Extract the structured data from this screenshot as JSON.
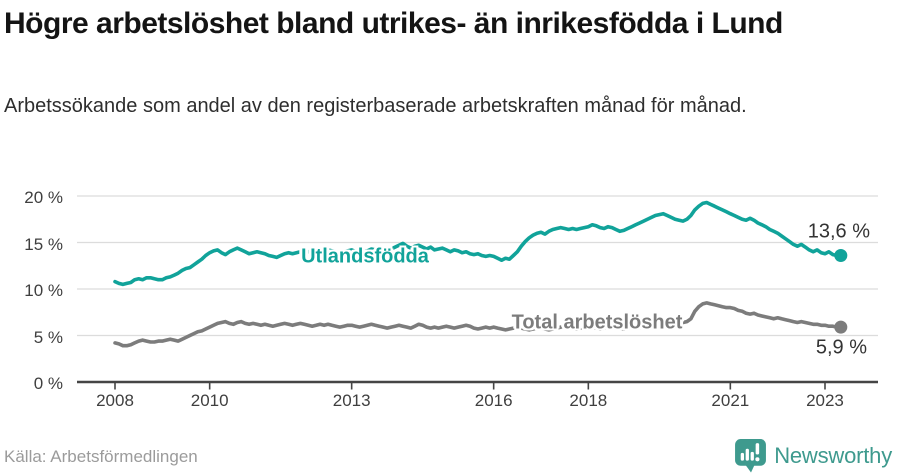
{
  "header": {
    "title": "Högre arbetslöshet bland utrikes- än inrikesfödda i Lund",
    "subtitle": "Arbetssökande som andel av den registerbaserade arbetskraften månad för månad."
  },
  "footer": {
    "source": "Källa: Arbetsförmedlingen",
    "brand": "Newsworthy"
  },
  "colors": {
    "foreign_born_line": "#11A39A",
    "total_line": "#7C7C7C",
    "grid": "#DCDCDC",
    "axis": "#454545",
    "brand_teal": "#3E9A8E"
  },
  "chart_data": {
    "type": "line",
    "title": "Högre arbetslöshet bland utrikes- än inrikesfödda i Lund",
    "xlabel": "",
    "ylabel": "Arbetssökande som andel av den registerbaserade arbetskraften",
    "x_unit": "month",
    "x_start_year": 2008,
    "points_per_year": 12,
    "x_ticks": [
      2008,
      2010,
      2013,
      2016,
      2018,
      2021,
      2023
    ],
    "y_ticks": [
      "0 %",
      "5 %",
      "10 %",
      "15 %",
      "20 %"
    ],
    "y_tick_values": [
      0,
      5,
      10,
      15,
      20
    ],
    "ylim": [
      0,
      21
    ],
    "grid": true,
    "legend_position": "inline-labels",
    "series": [
      {
        "name": "Utlandsfödda",
        "color": "#11A39A",
        "end_label": "13,6 %",
        "end_value": 13.6,
        "values": [
          10.8,
          10.6,
          10.5,
          10.6,
          10.7,
          11.0,
          11.1,
          11.0,
          11.2,
          11.2,
          11.1,
          11.0,
          11.0,
          11.2,
          11.3,
          11.5,
          11.7,
          12.0,
          12.2,
          12.3,
          12.6,
          12.9,
          13.2,
          13.6,
          13.9,
          14.1,
          14.2,
          13.9,
          13.7,
          14.0,
          14.2,
          14.4,
          14.2,
          14.0,
          13.8,
          13.9,
          14.0,
          13.9,
          13.8,
          13.6,
          13.5,
          13.4,
          13.6,
          13.8,
          13.9,
          13.8,
          13.9,
          14.0,
          14.1,
          14.0,
          13.9,
          13.8,
          13.9,
          14.0,
          14.2,
          14.1,
          14.0,
          13.9,
          14.0,
          14.1,
          14.2,
          14.0,
          13.9,
          14.0,
          14.1,
          14.3,
          14.2,
          14.1,
          14.0,
          14.1,
          14.3,
          14.5,
          14.7,
          14.9,
          14.6,
          14.4,
          14.6,
          14.7,
          14.5,
          14.3,
          14.5,
          14.2,
          14.3,
          14.4,
          14.2,
          14.0,
          14.2,
          14.1,
          13.9,
          14.0,
          13.8,
          13.7,
          13.8,
          13.6,
          13.5,
          13.6,
          13.5,
          13.3,
          13.1,
          13.3,
          13.2,
          13.6,
          14.0,
          14.6,
          15.1,
          15.5,
          15.8,
          16.0,
          16.1,
          15.9,
          16.2,
          16.4,
          16.5,
          16.6,
          16.5,
          16.4,
          16.5,
          16.4,
          16.5,
          16.6,
          16.7,
          16.9,
          16.8,
          16.6,
          16.5,
          16.7,
          16.6,
          16.4,
          16.2,
          16.3,
          16.5,
          16.7,
          16.9,
          17.1,
          17.3,
          17.5,
          17.7,
          17.9,
          18.0,
          18.1,
          17.9,
          17.7,
          17.5,
          17.4,
          17.3,
          17.5,
          17.9,
          18.5,
          18.9,
          19.2,
          19.3,
          19.1,
          18.9,
          18.7,
          18.5,
          18.3,
          18.1,
          17.9,
          17.7,
          17.5,
          17.4,
          17.6,
          17.4,
          17.1,
          16.9,
          16.7,
          16.4,
          16.2,
          16.0,
          15.7,
          15.4,
          15.1,
          14.8,
          14.6,
          14.8,
          14.5,
          14.2,
          14.0,
          14.2,
          13.9,
          13.8,
          14.0,
          13.7,
          13.6,
          13.6
        ]
      },
      {
        "name": "Total arbetslöshet",
        "color": "#7C7C7C",
        "end_label": "5,9 %",
        "end_value": 5.9,
        "values": [
          4.2,
          4.1,
          3.9,
          3.9,
          4.0,
          4.2,
          4.4,
          4.5,
          4.4,
          4.3,
          4.3,
          4.4,
          4.4,
          4.5,
          4.6,
          4.5,
          4.4,
          4.6,
          4.8,
          5.0,
          5.2,
          5.4,
          5.5,
          5.7,
          5.9,
          6.1,
          6.3,
          6.4,
          6.5,
          6.3,
          6.2,
          6.4,
          6.5,
          6.3,
          6.2,
          6.3,
          6.2,
          6.1,
          6.2,
          6.1,
          6.0,
          6.1,
          6.2,
          6.3,
          6.2,
          6.1,
          6.2,
          6.3,
          6.2,
          6.1,
          6.0,
          6.1,
          6.2,
          6.1,
          6.2,
          6.1,
          6.0,
          5.9,
          6.0,
          6.1,
          6.1,
          6.0,
          5.9,
          6.0,
          6.1,
          6.2,
          6.1,
          6.0,
          5.9,
          5.8,
          5.9,
          6.0,
          6.1,
          6.0,
          5.9,
          5.8,
          6.0,
          6.2,
          6.1,
          5.9,
          5.8,
          5.9,
          5.8,
          5.9,
          6.0,
          5.9,
          5.8,
          5.9,
          6.0,
          6.1,
          6.0,
          5.8,
          5.7,
          5.8,
          5.9,
          5.8,
          5.9,
          5.8,
          5.7,
          5.6,
          5.7,
          5.8,
          5.9,
          5.8,
          5.7,
          5.6,
          5.7,
          5.8,
          5.8,
          5.7,
          5.6,
          5.7,
          5.8,
          5.9,
          6.0,
          5.9,
          5.8,
          5.7,
          5.8,
          5.9,
          6.0,
          5.9,
          5.8,
          5.7,
          5.8,
          5.9,
          6.0,
          5.9,
          5.8,
          5.7,
          5.8,
          5.9,
          6.0,
          5.9,
          5.8,
          5.9,
          6.0,
          6.1,
          6.2,
          6.1,
          6.0,
          6.1,
          6.2,
          6.3,
          6.4,
          6.5,
          6.8,
          7.6,
          8.1,
          8.4,
          8.5,
          8.4,
          8.3,
          8.2,
          8.1,
          8.0,
          8.0,
          7.9,
          7.7,
          7.6,
          7.4,
          7.3,
          7.4,
          7.2,
          7.1,
          7.0,
          6.9,
          6.8,
          6.9,
          6.8,
          6.7,
          6.6,
          6.5,
          6.4,
          6.5,
          6.4,
          6.3,
          6.2,
          6.2,
          6.1,
          6.1,
          6.0,
          6.0,
          5.9,
          5.9
        ]
      }
    ]
  }
}
